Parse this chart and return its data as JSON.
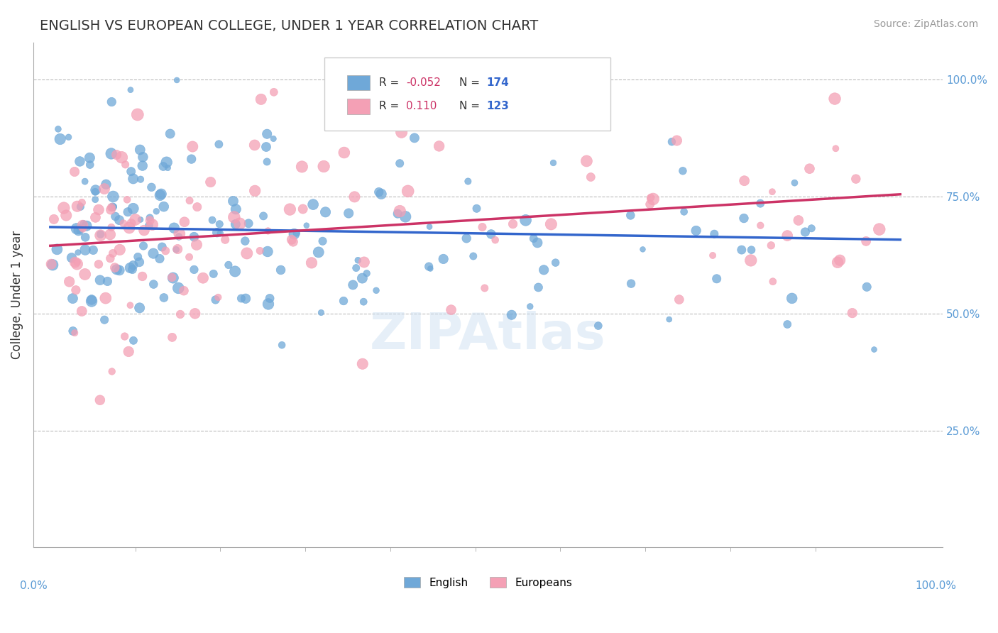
{
  "title": "ENGLISH VS EUROPEAN COLLEGE, UNDER 1 YEAR CORRELATION CHART",
  "source": "Source: ZipAtlas.com",
  "ylabel": "College, Under 1 year",
  "yticks": [
    "25.0%",
    "50.0%",
    "75.0%",
    "100.0%"
  ],
  "ytick_values": [
    0.25,
    0.5,
    0.75,
    1.0
  ],
  "legend_blue_r": "-0.052",
  "legend_blue_n": "174",
  "legend_pink_r": "0.110",
  "legend_pink_n": "123",
  "blue_color": "#6fa8d8",
  "pink_color": "#f4a0b5",
  "trendline_blue": "#3366cc",
  "trendline_pink": "#cc3366",
  "watermark": "ZIPAtlas",
  "n_blue": 174,
  "n_pink": 123
}
